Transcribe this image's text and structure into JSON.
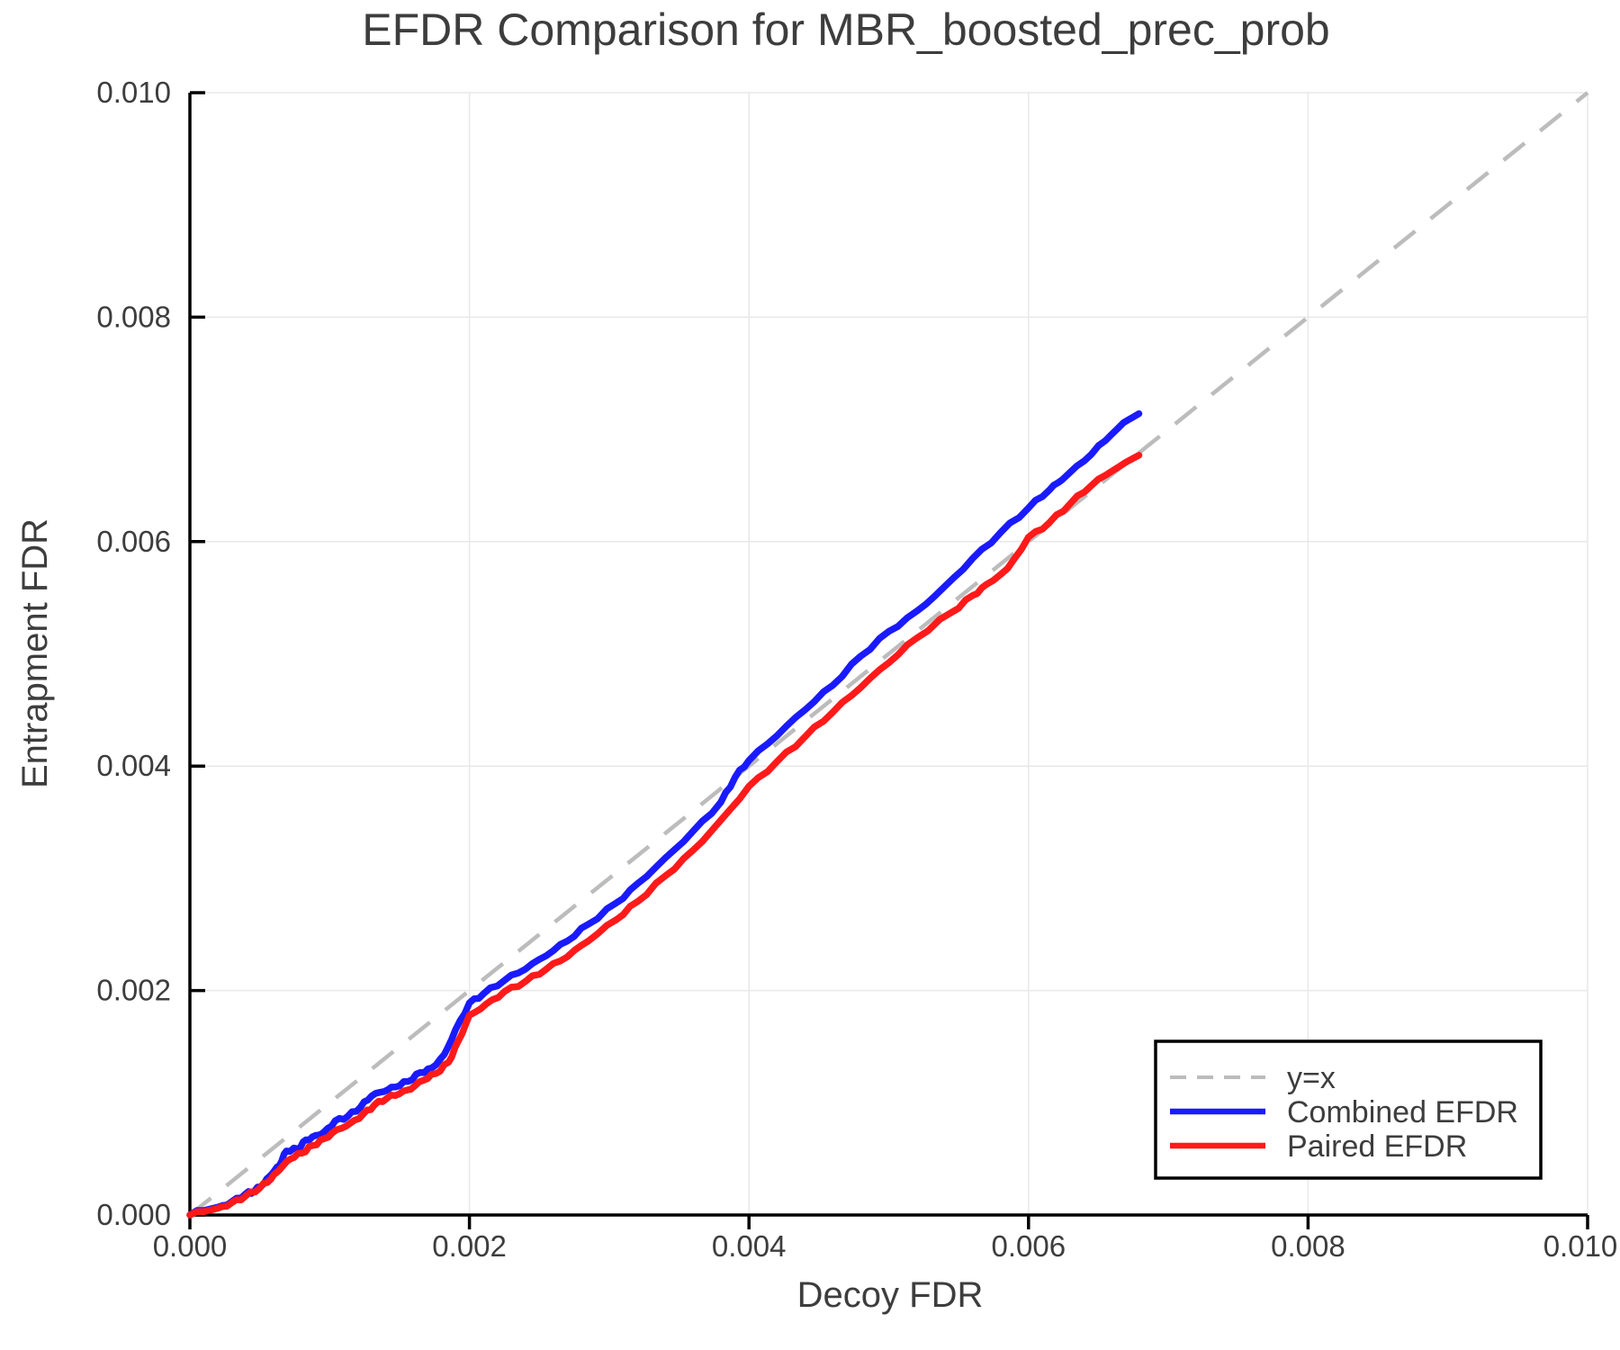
{
  "chart_data": {
    "type": "line",
    "title": "EFDR Comparison for MBR_boosted_prec_prob",
    "xlabel": "Decoy FDR",
    "ylabel": "Entrapment FDR",
    "xlim": [
      0.0,
      0.01
    ],
    "ylim": [
      0.0,
      0.01
    ],
    "xtick_labels": [
      "0.000",
      "0.002",
      "0.004",
      "0.006",
      "0.008",
      "0.010"
    ],
    "ytick_labels": [
      "0.000",
      "0.002",
      "0.004",
      "0.006",
      "0.008",
      "0.010"
    ],
    "grid": true,
    "legend_position": "lower right",
    "colors": {
      "reference": "#bcbcbc",
      "combined": "#1a1aff",
      "paired": "#ff1a1a",
      "grid": "#e8e8e8",
      "spine": "#000000",
      "text": "#3d3d3d"
    },
    "series": [
      {
        "name": "y=x",
        "role": "reference",
        "style": "dashed",
        "color": "#bcbcbc",
        "points": [
          [
            0.0,
            0.0
          ],
          [
            0.01,
            0.01
          ]
        ]
      },
      {
        "name": "Combined EFDR",
        "role": "data",
        "style": "solid",
        "color": "#1a1aff",
        "points": [
          [
            0.0,
            0.0
          ],
          [
            5e-05,
            4e-05
          ],
          [
            0.0001,
            4e-05
          ],
          [
            0.0002,
            7e-05
          ],
          [
            0.0003,
            0.00012
          ],
          [
            0.0004,
            0.00019
          ],
          [
            0.00046,
            0.00021
          ],
          [
            0.00053,
            0.00028
          ],
          [
            0.00059,
            0.00037
          ],
          [
            0.00064,
            0.00044
          ],
          [
            0.00069,
            0.00057
          ],
          [
            0.00077,
            0.00059
          ],
          [
            0.00083,
            0.00067
          ],
          [
            0.0009,
            0.00071
          ],
          [
            0.00096,
            0.00074
          ],
          [
            0.00104,
            0.00084
          ],
          [
            0.00113,
            0.00088
          ],
          [
            0.00122,
            0.00096
          ],
          [
            0.0013,
            0.00106
          ],
          [
            0.00139,
            0.0011
          ],
          [
            0.00147,
            0.00114
          ],
          [
            0.00156,
            0.00119
          ],
          [
            0.00165,
            0.00127
          ],
          [
            0.00173,
            0.00131
          ],
          [
            0.00182,
            0.00143
          ],
          [
            0.0019,
            0.00165
          ],
          [
            0.002,
            0.00189
          ],
          [
            0.0021,
            0.00197
          ],
          [
            0.00225,
            0.00209
          ],
          [
            0.0024,
            0.00219
          ],
          [
            0.00255,
            0.00231
          ],
          [
            0.0027,
            0.00244
          ],
          [
            0.00285,
            0.00259
          ],
          [
            0.00305,
            0.00278
          ],
          [
            0.0032,
            0.00295
          ],
          [
            0.0034,
            0.00318
          ],
          [
            0.0036,
            0.00342
          ],
          [
            0.0038,
            0.00368
          ],
          [
            0.0039,
            0.0039
          ],
          [
            0.004,
            0.00405
          ],
          [
            0.0042,
            0.00427
          ],
          [
            0.0044,
            0.0045
          ],
          [
            0.0046,
            0.00472
          ],
          [
            0.0048,
            0.00498
          ],
          [
            0.005,
            0.0052
          ],
          [
            0.0052,
            0.00538
          ],
          [
            0.0054,
            0.0056
          ],
          [
            0.0056,
            0.00585
          ],
          [
            0.0058,
            0.00608
          ],
          [
            0.006,
            0.0063
          ],
          [
            0.00615,
            0.00646
          ],
          [
            0.00624,
            0.00655
          ],
          [
            0.0064,
            0.00672
          ],
          [
            0.00655,
            0.0069
          ],
          [
            0.00668,
            0.00706
          ],
          [
            0.00679,
            0.00714
          ]
        ]
      },
      {
        "name": "Paired EFDR",
        "role": "data",
        "style": "solid",
        "color": "#ff1a1a",
        "points": [
          [
            0.0,
            0.0
          ],
          [
            5e-05,
            3e-05
          ],
          [
            0.0001,
            3e-05
          ],
          [
            0.0002,
            6e-05
          ],
          [
            0.0003,
            0.00011
          ],
          [
            0.0004,
            0.00017
          ],
          [
            0.0005,
            0.00024
          ],
          [
            0.00058,
            0.00032
          ],
          [
            0.00064,
            0.0004
          ],
          [
            0.00072,
            0.0005
          ],
          [
            0.0008,
            0.00055
          ],
          [
            0.00088,
            0.00062
          ],
          [
            0.00096,
            0.00068
          ],
          [
            0.00105,
            0.00076
          ],
          [
            0.00115,
            0.00082
          ],
          [
            0.00124,
            0.0009
          ],
          [
            0.00132,
            0.00098
          ],
          [
            0.00141,
            0.00104
          ],
          [
            0.0015,
            0.00108
          ],
          [
            0.00158,
            0.00112
          ],
          [
            0.00167,
            0.0012
          ],
          [
            0.00176,
            0.00126
          ],
          [
            0.00185,
            0.00136
          ],
          [
            0.00192,
            0.00155
          ],
          [
            0.002,
            0.00178
          ],
          [
            0.00212,
            0.00188
          ],
          [
            0.00225,
            0.00199
          ],
          [
            0.0024,
            0.00208
          ],
          [
            0.00255,
            0.00219
          ],
          [
            0.0027,
            0.0023
          ],
          [
            0.00285,
            0.00244
          ],
          [
            0.00305,
            0.00263
          ],
          [
            0.0032,
            0.00279
          ],
          [
            0.0034,
            0.00302
          ],
          [
            0.0036,
            0.00325
          ],
          [
            0.0038,
            0.00352
          ],
          [
            0.004,
            0.00382
          ],
          [
            0.0042,
            0.00404
          ],
          [
            0.0044,
            0.00426
          ],
          [
            0.0046,
            0.00448
          ],
          [
            0.0048,
            0.0047
          ],
          [
            0.005,
            0.00492
          ],
          [
            0.0052,
            0.00514
          ],
          [
            0.00545,
            0.00537
          ],
          [
            0.0056,
            0.00552
          ],
          [
            0.0057,
            0.00562
          ],
          [
            0.00585,
            0.00576
          ],
          [
            0.006,
            0.00604
          ],
          [
            0.00615,
            0.00617
          ],
          [
            0.0063,
            0.00634
          ],
          [
            0.00645,
            0.0065
          ],
          [
            0.0066,
            0.00663
          ],
          [
            0.0067,
            0.00671
          ],
          [
            0.00679,
            0.00677
          ]
        ]
      }
    ]
  },
  "legend": {
    "entries": [
      "y=x",
      "Combined EFDR",
      "Paired EFDR"
    ]
  }
}
